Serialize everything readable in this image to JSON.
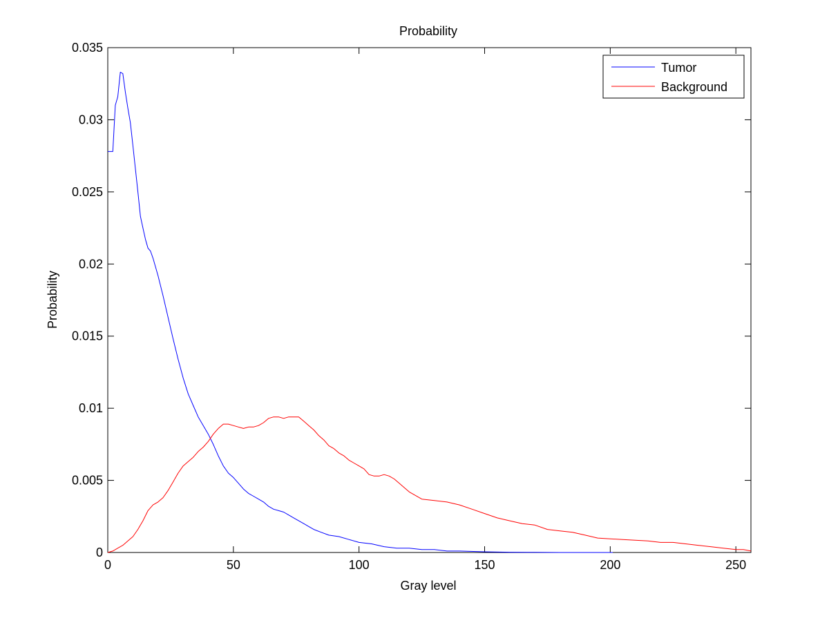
{
  "chart_data": {
    "type": "line",
    "title": "Probability",
    "xlabel": "Gray level",
    "ylabel": "Probability",
    "xlim": [
      0,
      256
    ],
    "ylim": [
      0,
      0.035
    ],
    "xticks": [
      0,
      50,
      100,
      150,
      200,
      250
    ],
    "xtick_labels": [
      "0",
      "50",
      "100",
      "150",
      "200",
      "250"
    ],
    "yticks": [
      0,
      0.005,
      0.01,
      0.015,
      0.02,
      0.025,
      0.03,
      0.035
    ],
    "ytick_labels": [
      "0",
      "0.005",
      "0.01",
      "0.015",
      "0.02",
      "0.025",
      "0.03",
      "0.035"
    ],
    "grid": false,
    "legend_position": "top-right",
    "series": [
      {
        "name": "Tumor",
        "color": "#0000ff",
        "x": [
          0,
          1,
          2,
          3,
          4,
          5,
          6,
          7,
          8,
          9,
          10,
          11,
          12,
          13,
          14,
          15,
          16,
          17,
          18,
          20,
          22,
          24,
          26,
          28,
          30,
          32,
          34,
          36,
          38,
          40,
          42,
          44,
          46,
          48,
          50,
          52,
          54,
          56,
          58,
          60,
          62,
          64,
          66,
          68,
          70,
          72,
          74,
          76,
          78,
          80,
          82,
          85,
          88,
          92,
          96,
          100,
          105,
          110,
          115,
          120,
          125,
          130,
          135,
          140,
          150,
          160,
          170,
          180,
          190,
          200,
          201
        ],
        "y": [
          0.0278,
          0.0278,
          0.0278,
          0.031,
          0.0316,
          0.0333,
          0.0332,
          0.0319,
          0.0308,
          0.0298,
          0.0282,
          0.0266,
          0.025,
          0.0233,
          0.0225,
          0.0217,
          0.0211,
          0.0209,
          0.0204,
          0.0192,
          0.0178,
          0.0163,
          0.0148,
          0.0134,
          0.0121,
          0.011,
          0.0102,
          0.0094,
          0.0088,
          0.0082,
          0.0075,
          0.0067,
          0.006,
          0.0055,
          0.0052,
          0.0048,
          0.0044,
          0.0041,
          0.0039,
          0.0037,
          0.0035,
          0.0032,
          0.003,
          0.0029,
          0.0028,
          0.0026,
          0.0024,
          0.0022,
          0.002,
          0.0018,
          0.0016,
          0.0014,
          0.0012,
          0.0011,
          0.0009,
          0.0007,
          0.0006,
          0.0004,
          0.0003,
          0.0003,
          0.0002,
          0.0002,
          0.0001,
          0.0001,
          5e-05,
          2e-05,
          1e-05,
          0.0,
          0.0,
          0.0,
          0.0
        ]
      },
      {
        "name": "Background",
        "color": "#ff0000",
        "x": [
          0,
          2,
          4,
          6,
          8,
          10,
          12,
          14,
          16,
          18,
          20,
          22,
          24,
          26,
          28,
          30,
          32,
          34,
          36,
          38,
          40,
          42,
          44,
          46,
          48,
          50,
          52,
          54,
          56,
          58,
          60,
          62,
          64,
          66,
          68,
          70,
          72,
          74,
          76,
          78,
          80,
          82,
          84,
          86,
          88,
          90,
          92,
          94,
          96,
          98,
          100,
          102,
          104,
          106,
          108,
          110,
          112,
          114,
          116,
          118,
          120,
          125,
          130,
          135,
          140,
          145,
          150,
          155,
          160,
          165,
          170,
          175,
          180,
          185,
          190,
          195,
          200,
          205,
          210,
          215,
          220,
          225,
          230,
          235,
          240,
          245,
          250,
          253,
          256
        ],
        "y": [
          0.0,
          0.0001,
          0.0003,
          0.0005,
          0.0008,
          0.0011,
          0.0016,
          0.0022,
          0.0029,
          0.0033,
          0.0035,
          0.0038,
          0.0043,
          0.0049,
          0.0055,
          0.006,
          0.0063,
          0.0066,
          0.007,
          0.0073,
          0.0077,
          0.0082,
          0.0086,
          0.0089,
          0.0089,
          0.0088,
          0.0087,
          0.0086,
          0.0087,
          0.0087,
          0.0088,
          0.009,
          0.0093,
          0.0094,
          0.0094,
          0.0093,
          0.0094,
          0.0094,
          0.0094,
          0.0091,
          0.0088,
          0.0085,
          0.0081,
          0.0078,
          0.0074,
          0.0072,
          0.0069,
          0.0067,
          0.0064,
          0.0062,
          0.006,
          0.0058,
          0.0054,
          0.0053,
          0.0053,
          0.0054,
          0.0053,
          0.0051,
          0.0048,
          0.0045,
          0.0042,
          0.0037,
          0.0036,
          0.0035,
          0.0033,
          0.003,
          0.0027,
          0.0024,
          0.0022,
          0.002,
          0.0019,
          0.0016,
          0.0015,
          0.0014,
          0.0012,
          0.001,
          0.00095,
          0.0009,
          0.00085,
          0.0008,
          0.0007,
          0.0007,
          0.0006,
          0.0005,
          0.0004,
          0.0003,
          0.0002,
          0.0002,
          0.0001
        ]
      }
    ]
  }
}
